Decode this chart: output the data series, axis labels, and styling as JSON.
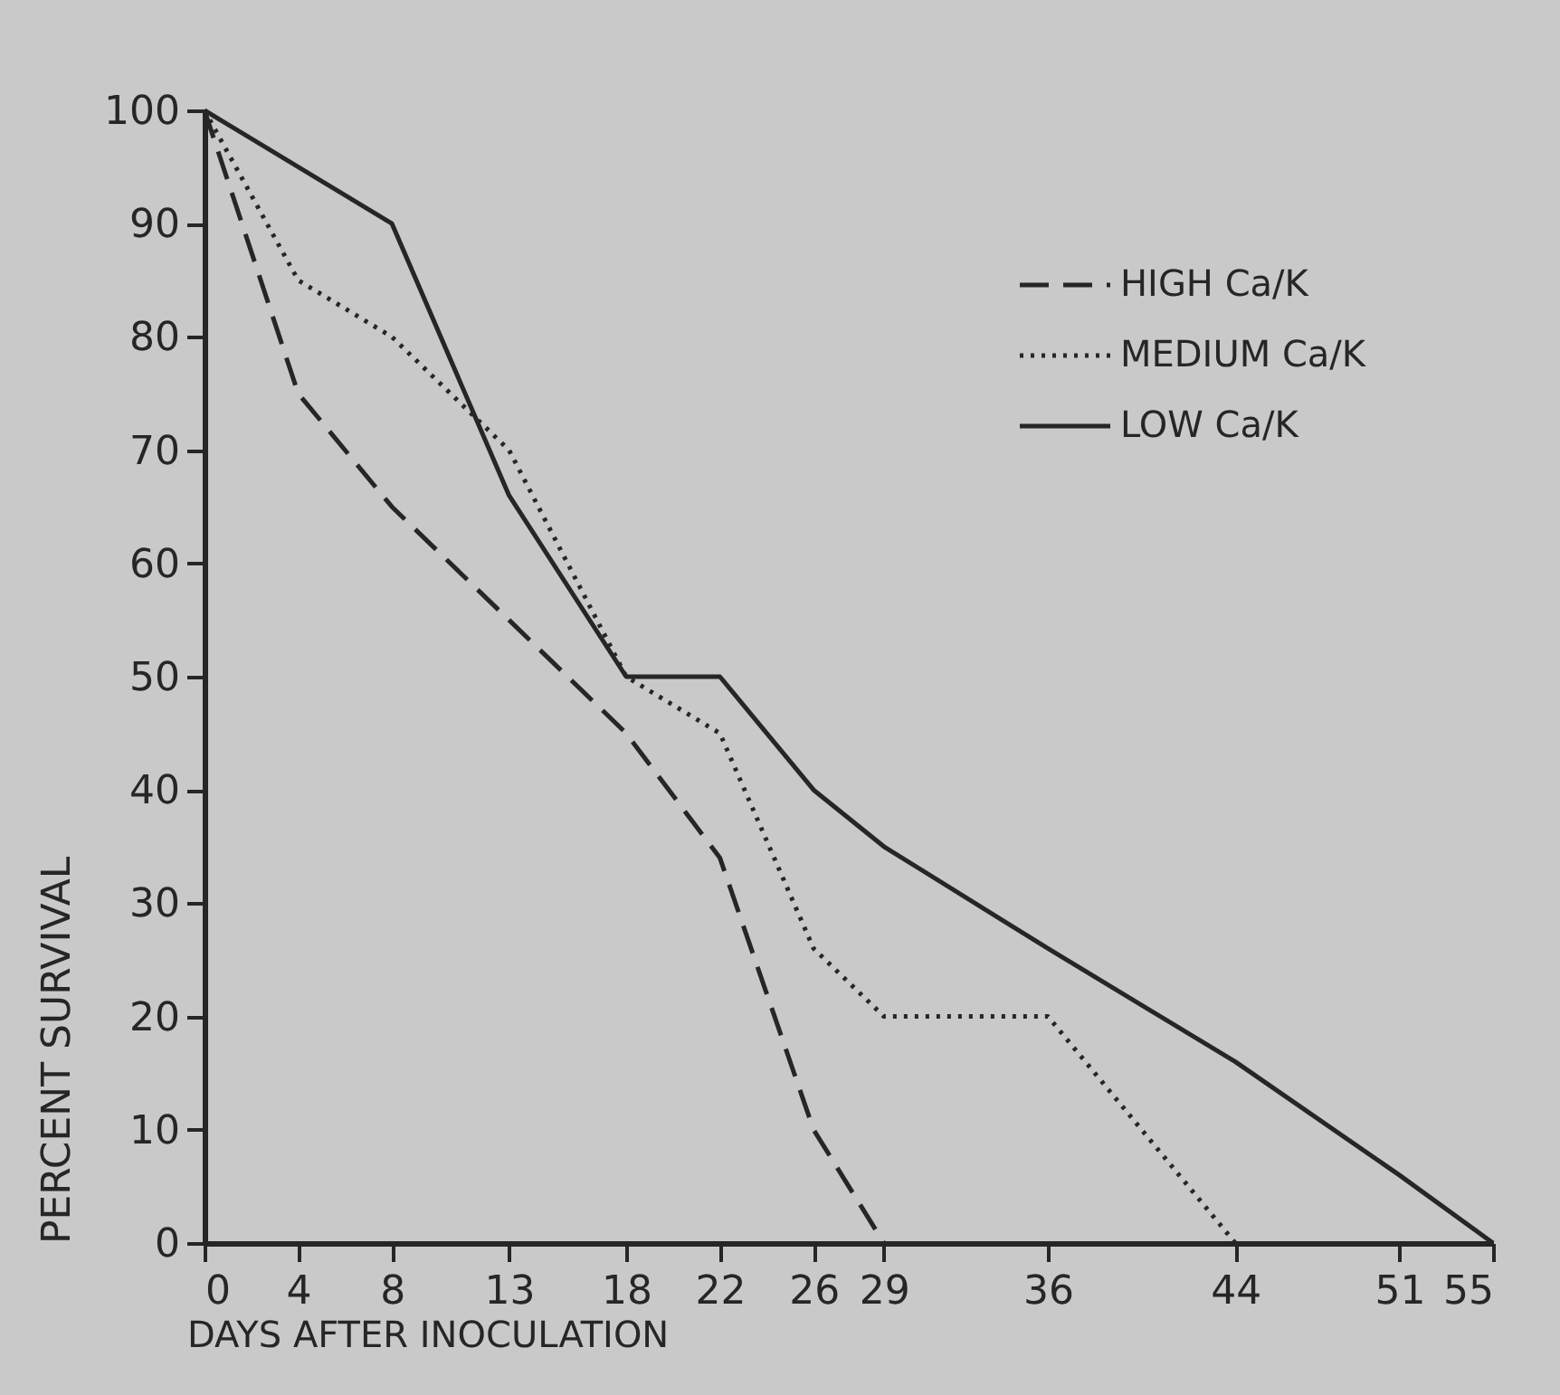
{
  "chart_data": {
    "type": "line",
    "xlabel": "DAYS  AFTER  INOCULATION",
    "ylabel": "PERCENT  SURVIVAL",
    "xlim": [
      0,
      55
    ],
    "xticks": [
      0,
      4,
      8,
      13,
      18,
      22,
      26,
      29,
      36,
      44,
      51,
      55
    ],
    "ylim": [
      0,
      100
    ],
    "yticks": [
      0,
      10,
      20,
      30,
      40,
      50,
      60,
      70,
      80,
      90,
      100
    ],
    "grid": false,
    "legend": "top right",
    "marker": "none",
    "series": [
      {
        "name": "HIGH Ca/K",
        "color": "#262626",
        "line_style": "dashed",
        "x": [
          0,
          4,
          8,
          13,
          18,
          22,
          26,
          29
        ],
        "values": [
          100,
          75,
          65,
          55,
          45,
          34,
          10,
          0
        ]
      },
      {
        "name": "MEDIUM Ca/K",
        "color": "#262626",
        "line_style": "dotted",
        "x": [
          0,
          4,
          8,
          13,
          18,
          22,
          26,
          29,
          36,
          44
        ],
        "values": [
          100,
          85,
          80,
          70,
          50,
          45,
          26,
          20,
          20,
          0
        ]
      },
      {
        "name": "LOW Ca/K",
        "color": "#262626",
        "line_style": "solid",
        "x": [
          0,
          8,
          13,
          18,
          22,
          26,
          29,
          36,
          44,
          51,
          55
        ],
        "values": [
          100,
          90,
          66,
          50,
          50,
          40,
          35,
          26,
          16,
          6,
          0
        ]
      }
    ]
  }
}
